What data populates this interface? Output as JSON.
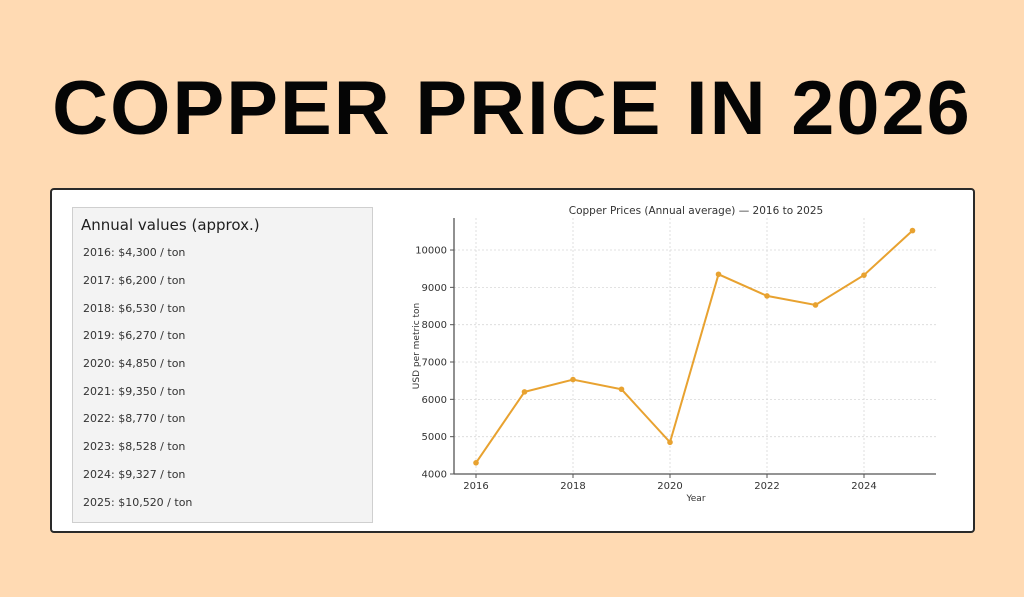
{
  "headline": "COPPER PRICE IN 2026",
  "panel": {
    "title": "Annual values (approx.)",
    "items": [
      "2016: $4,300 / ton",
      "2017: $6,200 / ton",
      "2018: $6,530 / ton",
      "2019: $6,270 / ton",
      "2020: $4,850 / ton",
      "2021: $9,350 / ton",
      "2022: $8,770 / ton",
      "2023: $8,528 / ton",
      "2024: $9,327 / ton",
      "2025: $10,520 / ton"
    ]
  },
  "colors": {
    "background": "#ffdab3",
    "line": "#e8a230",
    "panel_bg": "#f3f3f3"
  },
  "chart_data": {
    "type": "line",
    "title": "Copper Prices (Annual average) — 2016 to 2025",
    "xlabel": "Year",
    "ylabel": "USD per metric ton",
    "x": [
      2016,
      2017,
      2018,
      2019,
      2020,
      2021,
      2022,
      2023,
      2024,
      2025
    ],
    "series": [
      {
        "name": "Copper price",
        "values": [
          4300,
          6200,
          6530,
          6270,
          4850,
          9350,
          8770,
          8528,
          9327,
          10520
        ]
      }
    ],
    "xticks": [
      "2016",
      "2018",
      "2020",
      "2022",
      "2024"
    ],
    "yticks": [
      "4000",
      "5000",
      "6000",
      "7000",
      "8000",
      "9000",
      "10000"
    ],
    "xlim": [
      2015.6,
      2025.5
    ],
    "ylim": [
      4000,
      10650
    ],
    "grid": true,
    "legend": false
  }
}
